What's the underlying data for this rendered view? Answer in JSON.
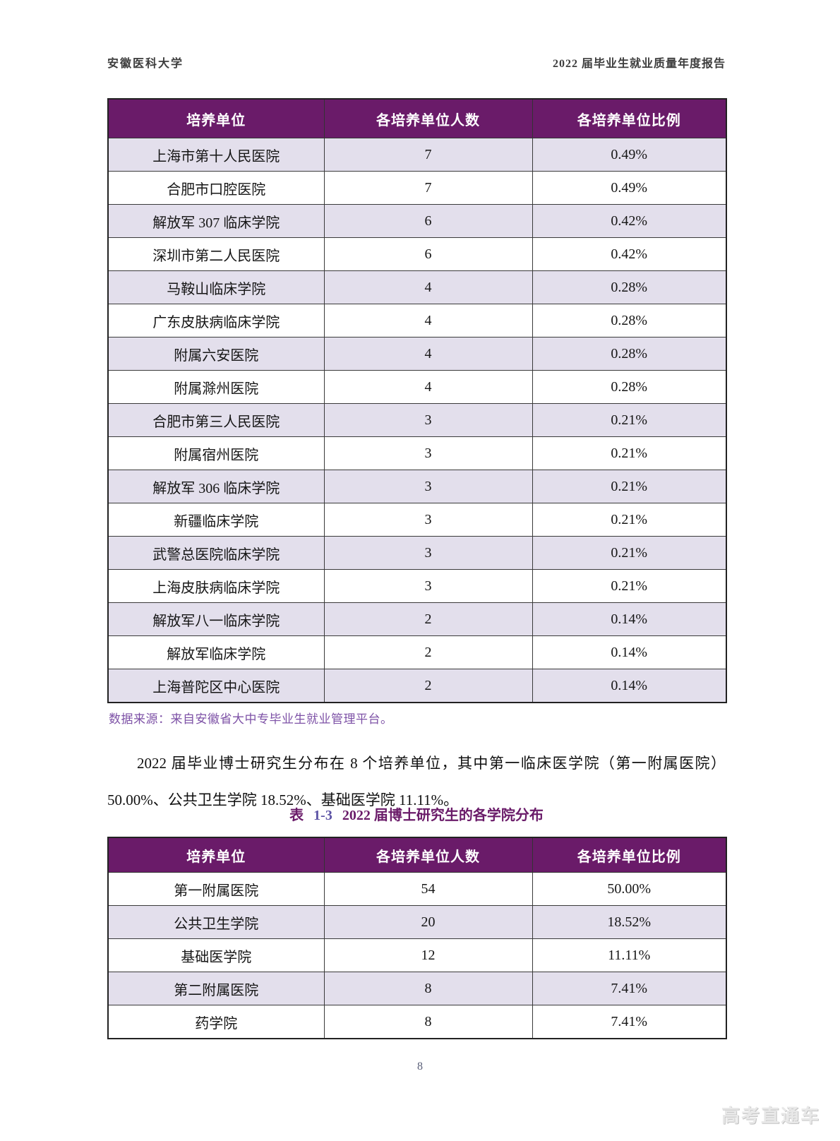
{
  "page_header": {
    "left": "安徽医科大学",
    "right": "2022 届毕业生就业质量年度报告"
  },
  "table1": {
    "headers": [
      "培养单位",
      "各培养单位人数",
      "各培养单位比例"
    ],
    "rows": [
      [
        "上海市第十人民医院",
        "7",
        "0.49%"
      ],
      [
        "合肥市口腔医院",
        "7",
        "0.49%"
      ],
      [
        "解放军 307 临床学院",
        "6",
        "0.42%"
      ],
      [
        "深圳市第二人民医院",
        "6",
        "0.42%"
      ],
      [
        "马鞍山临床学院",
        "4",
        "0.28%"
      ],
      [
        "广东皮肤病临床学院",
        "4",
        "0.28%"
      ],
      [
        "附属六安医院",
        "4",
        "0.28%"
      ],
      [
        "附属滁州医院",
        "4",
        "0.28%"
      ],
      [
        "合肥市第三人民医院",
        "3",
        "0.21%"
      ],
      [
        "附属宿州医院",
        "3",
        "0.21%"
      ],
      [
        "解放军 306 临床学院",
        "3",
        "0.21%"
      ],
      [
        "新疆临床学院",
        "3",
        "0.21%"
      ],
      [
        "武警总医院临床学院",
        "3",
        "0.21%"
      ],
      [
        "上海皮肤病临床学院",
        "3",
        "0.21%"
      ],
      [
        "解放军八一临床学院",
        "2",
        "0.14%"
      ],
      [
        "解放军临床学院",
        "2",
        "0.14%"
      ],
      [
        "上海普陀区中心医院",
        "2",
        "0.14%"
      ]
    ]
  },
  "source_note": "数据来源：来自安徽省大中专毕业生就业管理平台。",
  "paragraph": "2022 届毕业博士研究生分布在 8 个培养单位，其中第一临床医学院（第一附属医院）50.00%、公共卫生学院 18.52%、基础医学院 11.11%。",
  "table2_caption": {
    "label": "表",
    "number": "1-3",
    "title": "2022 届博士研究生的各学院分布"
  },
  "table2": {
    "headers": [
      "培养单位",
      "各培养单位人数",
      "各培养单位比例"
    ],
    "rows": [
      [
        "第一附属医院",
        "54",
        "50.00%"
      ],
      [
        "公共卫生学院",
        "20",
        "18.52%"
      ],
      [
        "基础医学院",
        "12",
        "11.11%"
      ],
      [
        "第二附属医院",
        "8",
        "7.41%"
      ],
      [
        "药学院",
        "8",
        "7.41%"
      ]
    ]
  },
  "page_number": "8",
  "watermark": "高考直通车",
  "colors": {
    "table_header_bg": "#6A1B69",
    "row_shade": "#E3DFEC",
    "source_note_text": "#7D51A6",
    "caption_text": "#6A1B69",
    "caption_number_text": "#5C53A5"
  }
}
